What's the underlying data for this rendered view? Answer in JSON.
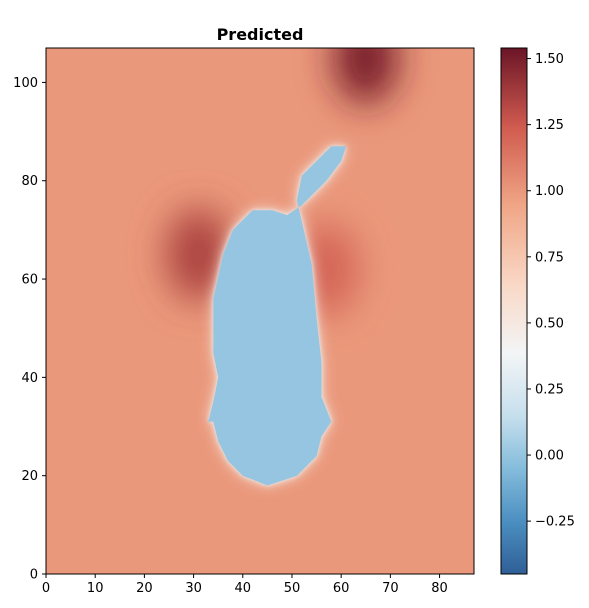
{
  "chart_data": {
    "type": "heatmap",
    "title": "Predicted",
    "xlabel": "",
    "ylabel": "",
    "xlim": [
      0,
      87
    ],
    "ylim": [
      0,
      107
    ],
    "x_ticks": [
      "0",
      "10",
      "20",
      "30",
      "40",
      "50",
      "60",
      "70",
      "80"
    ],
    "y_ticks": [
      "0",
      "20",
      "40",
      "60",
      "80",
      "100"
    ],
    "colorbar": {
      "colormap": "RdBu_r",
      "range": [
        -0.45,
        1.54
      ],
      "ticks": [
        "−0.25",
        "0.00",
        "0.25",
        "0.50",
        "0.75",
        "1.00",
        "1.25",
        "1.50"
      ]
    },
    "background_level": 1.0,
    "high_regions": [
      {
        "center": [
          31,
          65
        ],
        "value": 1.35
      },
      {
        "center": [
          65,
          105
        ],
        "value": 1.5
      },
      {
        "center": [
          57,
          62
        ],
        "value": 1.2
      }
    ],
    "low_region": {
      "value": 0.0,
      "body_outline": [
        [
          34,
          35
        ],
        [
          35,
          40
        ],
        [
          34,
          45
        ],
        [
          34,
          56
        ],
        [
          36,
          65
        ],
        [
          38,
          70
        ],
        [
          42,
          74
        ],
        [
          46,
          74
        ],
        [
          49,
          73
        ],
        [
          52,
          75
        ],
        [
          57,
          80
        ],
        [
          60,
          84
        ],
        [
          61,
          87
        ],
        [
          58,
          87
        ],
        [
          52,
          81
        ],
        [
          51,
          76
        ],
        [
          54,
          63
        ],
        [
          55,
          52
        ],
        [
          56,
          43
        ],
        [
          56,
          36
        ],
        [
          58,
          31
        ],
        [
          56,
          28
        ],
        [
          55,
          24
        ],
        [
          51,
          20
        ],
        [
          45,
          18
        ],
        [
          40,
          20
        ],
        [
          37,
          23
        ],
        [
          35,
          27
        ],
        [
          34,
          31
        ],
        [
          33,
          31
        ]
      ]
    }
  }
}
